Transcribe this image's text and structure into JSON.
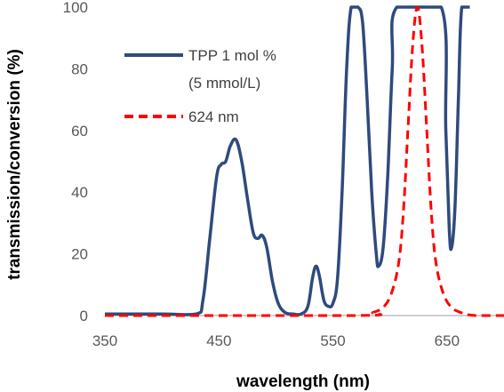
{
  "chart_data": {
    "type": "line",
    "xlabel": "wavelength (nm)",
    "ylabel": "transmission/conversion  (%)",
    "xlim": [
      350,
      700
    ],
    "ylim": [
      0,
      100
    ],
    "x_ticks": [
      350,
      450,
      550,
      650
    ],
    "x_tick_labels": [
      "350",
      "450",
      "550",
      "650"
    ],
    "y_ticks": [
      0,
      20,
      40,
      60,
      80,
      100
    ],
    "y_tick_labels": [
      "0",
      "20",
      "40",
      "60",
      "80",
      "100"
    ],
    "legend_position": "top-left",
    "series": [
      {
        "name_line1": "TPP 1 mol %",
        "name_line2": "(5 mmol/L)",
        "color": "#2f4a7d",
        "style": "solid",
        "points": [
          [
            350,
            0.5
          ],
          [
            400,
            0.5
          ],
          [
            430,
            0.5
          ],
          [
            436,
            5
          ],
          [
            442,
            25
          ],
          [
            448,
            45
          ],
          [
            452,
            49
          ],
          [
            456,
            50
          ],
          [
            460,
            55
          ],
          [
            465,
            57
          ],
          [
            470,
            50
          ],
          [
            475,
            38
          ],
          [
            480,
            27
          ],
          [
            484,
            25
          ],
          [
            488,
            26
          ],
          [
            492,
            22
          ],
          [
            497,
            11
          ],
          [
            502,
            4
          ],
          [
            508,
            1
          ],
          [
            515,
            0.5
          ],
          [
            522,
            0.5
          ],
          [
            528,
            3
          ],
          [
            532,
            12
          ],
          [
            535,
            16
          ],
          [
            538,
            13
          ],
          [
            542,
            5
          ],
          [
            546,
            3
          ],
          [
            550,
            4
          ],
          [
            554,
            12
          ],
          [
            558,
            40
          ],
          [
            562,
            80
          ],
          [
            566,
            100
          ],
          [
            572,
            100
          ],
          [
            576,
            95
          ],
          [
            580,
            70
          ],
          [
            584,
            40
          ],
          [
            588,
            20
          ],
          [
            590,
            16
          ],
          [
            594,
            22
          ],
          [
            598,
            45
          ],
          [
            602,
            80
          ],
          [
            606,
            100
          ],
          [
            645,
            100
          ],
          [
            649,
            60
          ],
          [
            652,
            28
          ],
          [
            654,
            22
          ],
          [
            657,
            35
          ],
          [
            660,
            70
          ],
          [
            663,
            100
          ],
          [
            670,
            100
          ]
        ]
      },
      {
        "name": "624 nm",
        "color": "#ff0000",
        "style": "dashed",
        "points": [
          [
            350,
            0
          ],
          [
            570,
            0
          ],
          [
            585,
            1
          ],
          [
            595,
            3
          ],
          [
            602,
            8
          ],
          [
            608,
            18
          ],
          [
            612,
            35
          ],
          [
            616,
            62
          ],
          [
            620,
            88
          ],
          [
            624,
            100
          ],
          [
            628,
            88
          ],
          [
            632,
            62
          ],
          [
            636,
            35
          ],
          [
            640,
            18
          ],
          [
            646,
            8
          ],
          [
            653,
            3
          ],
          [
            662,
            1
          ],
          [
            675,
            0
          ],
          [
            700,
            0
          ]
        ]
      }
    ]
  }
}
